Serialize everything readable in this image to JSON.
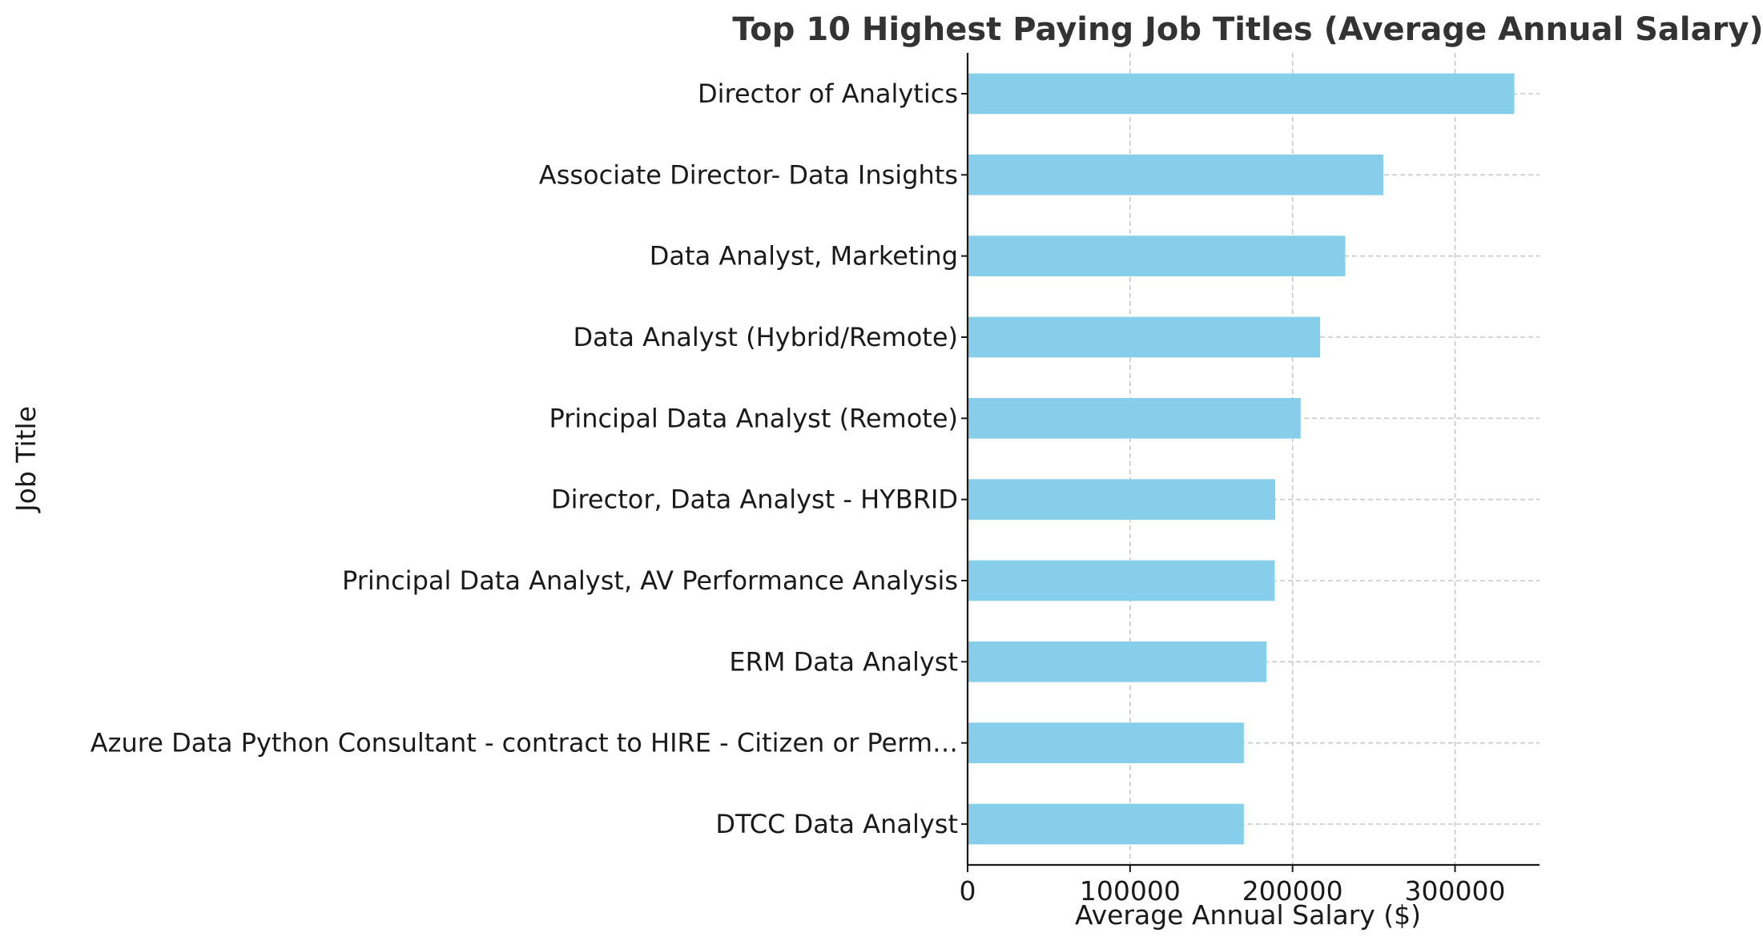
{
  "chart_data": {
    "type": "bar",
    "orientation": "horizontal",
    "title": "Top 10 Highest Paying Job Titles (Average Annual Salary)",
    "xlabel": "Average Annual Salary ($)",
    "ylabel": "Job Title",
    "categories": [
      "Director of Analytics",
      "Associate Director- Data Insights",
      "Data Analyst, Marketing",
      "Data Analyst (Hybrid/Remote)",
      "Principal Data Analyst (Remote)",
      "Director, Data Analyst - HYBRID",
      "Principal Data Analyst, AV Performance Analysis",
      "ERM Data Analyst",
      "Azure Data Python Consultant - contract to HIRE - Citizen or Perm…",
      "DTCC Data Analyst"
    ],
    "values": [
      336500,
      255830,
      232423,
      217000,
      205000,
      189309,
      189000,
      184000,
      170000,
      170000
    ],
    "xlim": [
      0,
      352000
    ],
    "xticks": [
      0,
      100000,
      200000,
      300000
    ],
    "xtick_labels": [
      "0",
      "100000",
      "200000",
      "300000"
    ],
    "grid": true,
    "bar_color": "#87CEEB"
  }
}
